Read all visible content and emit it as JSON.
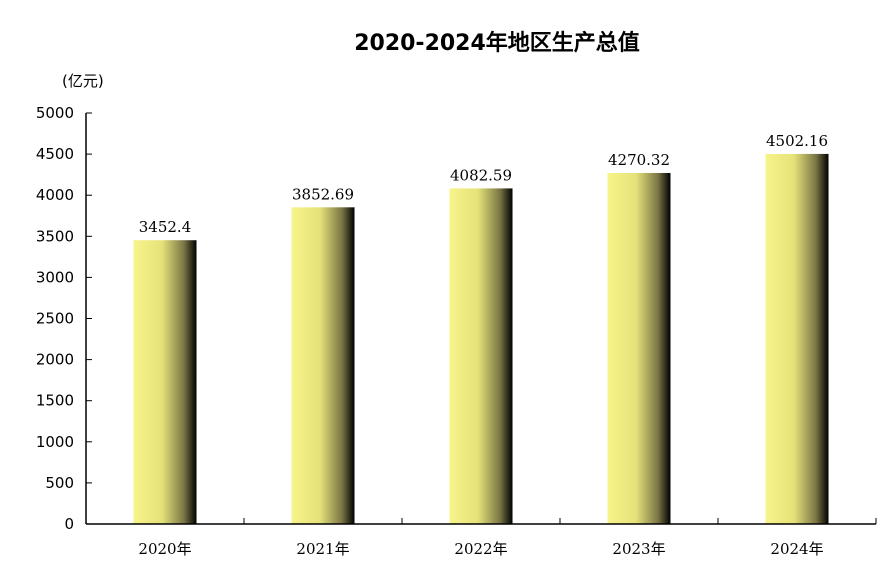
{
  "chart_data": {
    "type": "bar",
    "title": "2020-2024年地区生产总值",
    "ylabel": "(亿元)",
    "xlabel": "",
    "categories": [
      "2020年",
      "2021年",
      "2022年",
      "2023年",
      "2024年"
    ],
    "series": [
      {
        "values": [
          3452.4,
          3852.69,
          4082.59,
          4270.32,
          4502.16
        ]
      }
    ],
    "data_labels": [
      "3452.4",
      "3852.69",
      "4082.59",
      "4270.32",
      "4502.16"
    ],
    "ylim": [
      0,
      5000
    ],
    "yticks": [
      0,
      500,
      1000,
      1500,
      2000,
      2500,
      3000,
      3500,
      4000,
      4500,
      5000
    ],
    "grid": false,
    "legend": "none",
    "bar_gradient": [
      "#f7f48a",
      "#e6e27a",
      "#7a7646",
      "#000000"
    ]
  }
}
